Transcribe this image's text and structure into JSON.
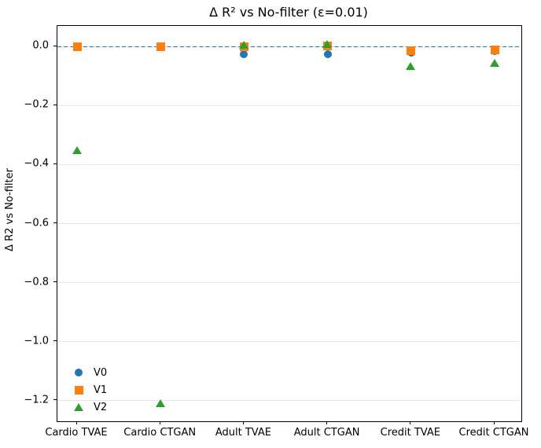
{
  "chart_data": {
    "type": "scatter",
    "title": "Δ R² vs No-filter (ε=0.01)",
    "xlabel": "",
    "ylabel": "Δ R2 vs No-filter",
    "categories": [
      "Cardio TVAE",
      "Cardio CTGAN",
      "Adult TVAE",
      "Adult CTGAN",
      "Credit TVAE",
      "Credit CTGAN"
    ],
    "series": [
      {
        "name": "V0",
        "marker": "circle",
        "color": "#1f77b4",
        "values": [
          0.0,
          0.0,
          -0.025,
          -0.025,
          -0.02,
          -0.015
        ]
      },
      {
        "name": "V1",
        "marker": "square",
        "color": "#ff7f0e",
        "values": [
          0.0,
          0.0,
          0.0,
          0.002,
          -0.015,
          -0.01
        ]
      },
      {
        "name": "V2",
        "marker": "triangle",
        "color": "#2ca02c",
        "values": [
          -0.35,
          -1.21,
          0.005,
          0.01,
          -0.065,
          -0.055
        ]
      }
    ],
    "ylim": [
      -1.27,
      0.07
    ],
    "yticks": [
      0.0,
      -0.2,
      -0.4,
      -0.6,
      -0.8,
      -1.0,
      -1.2
    ],
    "grid": "horizontal",
    "grid_color": "#e8e8e8",
    "legend_position": "lower-left",
    "reference_line": {
      "y": 0.0,
      "style": "dashed",
      "color": "#1f77b4"
    }
  }
}
